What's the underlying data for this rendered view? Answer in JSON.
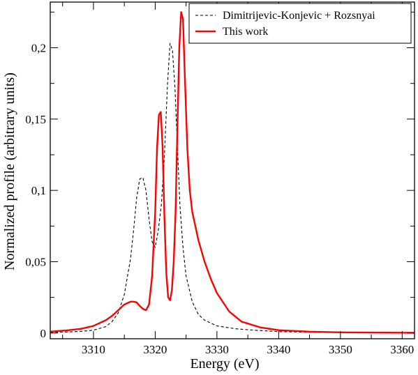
{
  "chart_data": {
    "type": "line",
    "title": "",
    "xlabel": "Energy (eV)",
    "ylabel": "Normalized profile (arbitrary units)",
    "xlim": [
      3303,
      3362
    ],
    "ylim": [
      -0.004,
      0.232
    ],
    "x_ticks": [
      3310,
      3320,
      3330,
      3340,
      3350,
      3360
    ],
    "x_tick_labels": [
      "3310",
      "3320",
      "3330",
      "3340",
      "3350",
      "3360"
    ],
    "y_ticks": [
      0,
      0.05,
      0.1,
      0.15,
      0.2
    ],
    "y_tick_labels": [
      "0",
      "0,05",
      "0,1",
      "0,15",
      "0,2"
    ],
    "grid": false,
    "legend_position": "top-right",
    "series": [
      {
        "name": "Dimitrijevic-Konjevic + Rozsnyai",
        "color": "#000000",
        "style": "dashed",
        "x": [
          3303,
          3306,
          3308,
          3310,
          3312,
          3313,
          3314,
          3315,
          3316,
          3316.5,
          3317,
          3317.5,
          3318,
          3318.5,
          3319,
          3319.5,
          3320,
          3320.5,
          3321,
          3321.5,
          3322,
          3322.4,
          3322.8,
          3323.2,
          3323.6,
          3324,
          3324.5,
          3325,
          3326,
          3327,
          3328,
          3330,
          3333,
          3336,
          3340,
          3345,
          3350,
          3362
        ],
        "y": [
          0.0005,
          0.0008,
          0.0012,
          0.002,
          0.0045,
          0.008,
          0.014,
          0.027,
          0.052,
          0.072,
          0.095,
          0.108,
          0.109,
          0.1,
          0.08,
          0.064,
          0.06,
          0.072,
          0.09,
          0.125,
          0.175,
          0.203,
          0.198,
          0.172,
          0.13,
          0.09,
          0.06,
          0.04,
          0.022,
          0.013,
          0.009,
          0.005,
          0.003,
          0.002,
          0.001,
          0.0006,
          0.0004,
          0.0002
        ]
      },
      {
        "name": "This work",
        "color": "#ff0000",
        "style": "solid",
        "x": [
          3303,
          3306,
          3308,
          3310,
          3312,
          3313,
          3314,
          3315,
          3316,
          3316.5,
          3317,
          3317.5,
          3318,
          3318.5,
          3319,
          3319.5,
          3320,
          3320.3,
          3320.6,
          3320.9,
          3321.2,
          3321.5,
          3321.8,
          3322.1,
          3322.4,
          3322.7,
          3323,
          3323.3,
          3323.6,
          3323.9,
          3324.2,
          3324.5,
          3324.8,
          3325.2,
          3325.6,
          3326,
          3327,
          3328,
          3329,
          3330,
          3332,
          3334,
          3337,
          3340,
          3345,
          3350,
          3362
        ],
        "y": [
          0.001,
          0.002,
          0.003,
          0.005,
          0.009,
          0.012,
          0.016,
          0.02,
          0.022,
          0.022,
          0.0215,
          0.019,
          0.017,
          0.016,
          0.02,
          0.04,
          0.085,
          0.13,
          0.153,
          0.155,
          0.13,
          0.08,
          0.042,
          0.025,
          0.023,
          0.03,
          0.05,
          0.085,
          0.145,
          0.2,
          0.225,
          0.22,
          0.18,
          0.13,
          0.1,
          0.085,
          0.065,
          0.05,
          0.038,
          0.028,
          0.015,
          0.008,
          0.004,
          0.002,
          0.001,
          0.0005,
          0.0002
        ]
      }
    ]
  }
}
